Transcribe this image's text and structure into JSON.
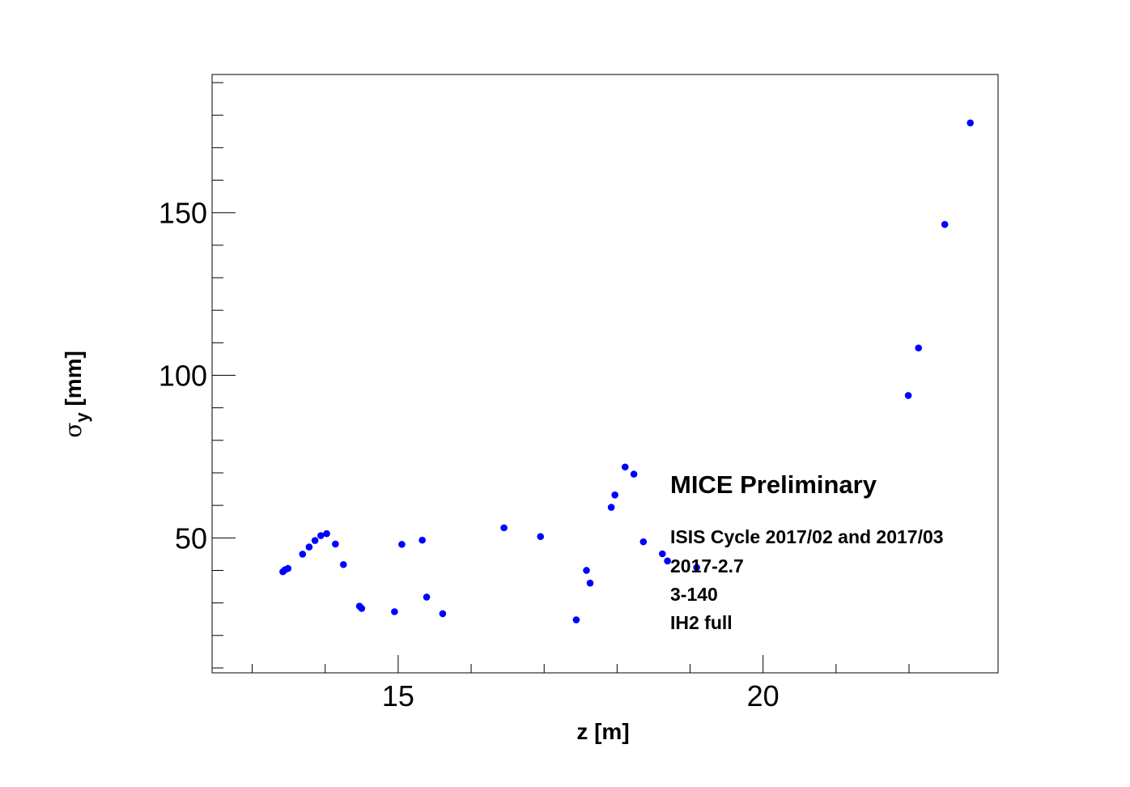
{
  "chart_data": {
    "type": "scatter",
    "xlabel": "z [m]",
    "ylabel_main": "σ",
    "ylabel_sub": "y",
    "ylabel_unit": " [mm]",
    "xlim": [
      12.45,
      23.22
    ],
    "ylim": [
      8.5,
      192.5
    ],
    "x_major_ticks": [
      15,
      20
    ],
    "x_minor_ticks": [
      13,
      14,
      16,
      17,
      18,
      19,
      21,
      22
    ],
    "y_major_ticks": [
      50,
      100,
      150
    ],
    "y_minor_step": 10,
    "grid": false,
    "marker_color": "#0000ff",
    "series": [
      {
        "x": [
          13.42,
          13.45,
          13.49,
          13.69,
          13.78,
          13.86,
          13.94,
          14.02,
          14.14,
          14.25,
          14.47,
          14.5,
          14.95,
          15.05,
          15.39,
          15.33,
          15.61,
          16.45,
          16.95,
          17.44,
          17.92,
          17.97,
          17.63,
          17.58,
          18.11,
          18.23,
          18.36,
          18.62,
          18.69,
          19.09,
          21.99,
          22.13,
          22.49,
          22.84
        ],
        "y": [
          39.6,
          40.2,
          40.6,
          45.0,
          47.2,
          49.2,
          50.7,
          51.3,
          48.1,
          41.8,
          29.0,
          28.3,
          27.3,
          48.0,
          31.8,
          49.3,
          26.7,
          53.1,
          50.4,
          24.8,
          59.4,
          63.2,
          36.1,
          40.0,
          71.8,
          69.6,
          48.8,
          45.1,
          42.9,
          40.9,
          93.8,
          108.4,
          146.4,
          177.6
        ]
      }
    ],
    "annotations": [
      "MICE Preliminary",
      "ISIS Cycle 2017/02 and 2017/03",
      "2017-2.7",
      "3-140",
      "IH2 full"
    ]
  }
}
